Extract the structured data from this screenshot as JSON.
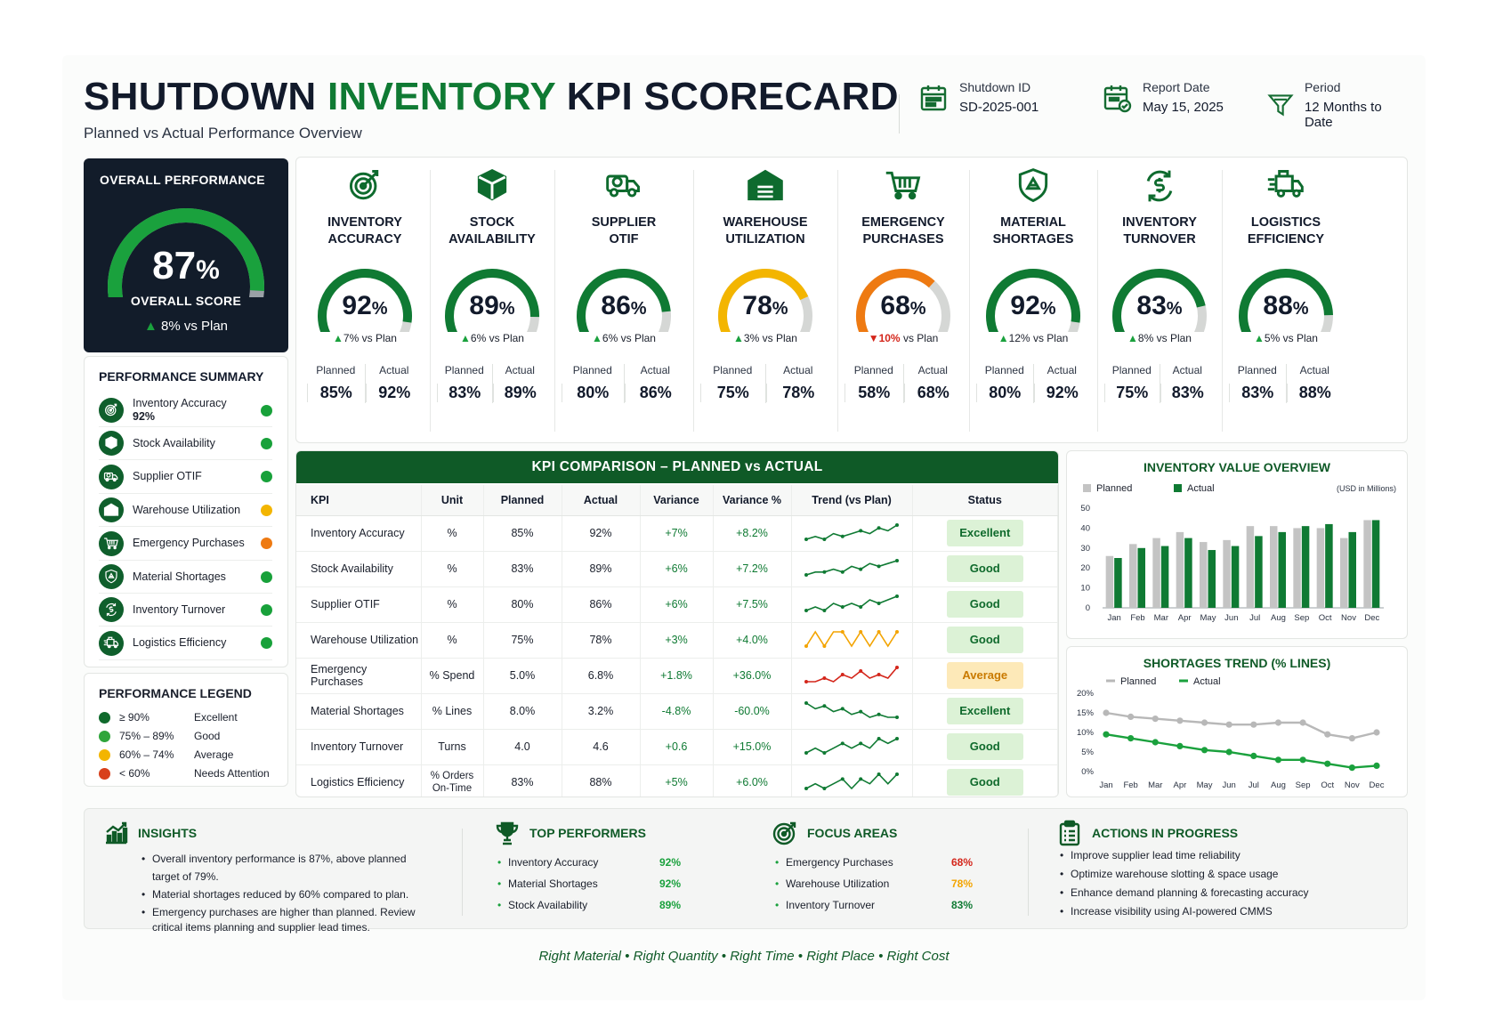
{
  "header": {
    "title_part1": "SHUTDOWN",
    "title_part2": "INVENTORY",
    "title_part3": "KPI SCORECARD",
    "subtitle": "Planned vs Actual Performance Overview",
    "meta": [
      {
        "label": "Shutdown ID",
        "value": "SD-2025-001",
        "icon": "calendar-icon"
      },
      {
        "label": "Report Date",
        "value": "May 15, 2025",
        "icon": "calendar-check-icon"
      },
      {
        "label": "Period",
        "value": "12 Months to Date",
        "icon": "filter-icon"
      }
    ]
  },
  "overall": {
    "title": "OVERALL PERFORMANCE",
    "value": "87",
    "unit": "%",
    "score_label": "OVERALL SCORE",
    "vs_plan": "8% vs Plan",
    "gauge_fraction": 0.87
  },
  "summary": {
    "title": "PERFORMANCE SUMMARY",
    "items": [
      {
        "name": "Inventory Accuracy",
        "value": "92%",
        "status": "green",
        "icon": "target-icon"
      },
      {
        "name": "Stock Availability",
        "value": "",
        "status": "green",
        "icon": "box-icon"
      },
      {
        "name": "Supplier OTIF",
        "value": "",
        "status": "green",
        "icon": "truck-icon"
      },
      {
        "name": "Warehouse Utilization",
        "value": "",
        "status": "yellow",
        "icon": "warehouse-icon"
      },
      {
        "name": "Emergency Purchases",
        "value": "",
        "status": "orange",
        "icon": "cart-icon"
      },
      {
        "name": "Material Shortages",
        "value": "",
        "status": "green",
        "icon": "shield-icon"
      },
      {
        "name": "Inventory Turnover",
        "value": "",
        "status": "green",
        "icon": "cycle-icon"
      },
      {
        "name": "Logistics Efficiency",
        "value": "",
        "status": "green",
        "icon": "delivery-icon"
      }
    ]
  },
  "legend": {
    "title": "PERFORMANCE LEGEND",
    "items": [
      {
        "range": "≥ 90%",
        "label": "Excellent",
        "color": "#0f6a2c"
      },
      {
        "range": "75% – 89%",
        "label": "Good",
        "color": "#2fa53b"
      },
      {
        "range": "60% – 74%",
        "label": "Average",
        "color": "#f3b500"
      },
      {
        "range": "< 60%",
        "label": "Needs Attention",
        "color": "#d8401b"
      }
    ]
  },
  "colors": {
    "brand_dark": "#0f5a27",
    "green": "#0f7a33",
    "light_green": "#2fa53b",
    "yellow": "#f3b500",
    "orange": "#ee7a12",
    "red": "#d4261b",
    "navy": "#121c2a"
  },
  "kpis": [
    {
      "name1": "INVENTORY",
      "name2": "ACCURACY",
      "value": "92",
      "change": "7%",
      "dir": "up",
      "planned": "85%",
      "actual": "92%",
      "gauge": 0.92,
      "color": "#0f7a33",
      "icon": "target-icon"
    },
    {
      "name1": "STOCK",
      "name2": "AVAILABILITY",
      "value": "89",
      "change": "6%",
      "dir": "up",
      "planned": "83%",
      "actual": "89%",
      "gauge": 0.89,
      "color": "#0f7a33",
      "icon": "box-icon"
    },
    {
      "name1": "SUPPLIER",
      "name2": "OTIF",
      "value": "86",
      "change": "6%",
      "dir": "up",
      "planned": "80%",
      "actual": "86%",
      "gauge": 0.86,
      "color": "#0f7a33",
      "icon": "truck-icon"
    },
    {
      "name1": "WAREHOUSE",
      "name2": "UTILIZATION",
      "value": "78",
      "change": "3%",
      "dir": "up",
      "planned": "75%",
      "actual": "78%",
      "gauge": 0.78,
      "color": "#f3b500",
      "icon": "warehouse-icon"
    },
    {
      "name1": "EMERGENCY",
      "name2": "PURCHASES",
      "value": "68",
      "change": "10%",
      "dir": "down",
      "planned": "58%",
      "actual": "68%",
      "gauge": 0.68,
      "color": "#ee7a12",
      "icon": "cart-icon"
    },
    {
      "name1": "MATERIAL",
      "name2": "SHORTAGES",
      "value": "92",
      "change": "12%",
      "dir": "up",
      "planned": "80%",
      "actual": "92%",
      "gauge": 0.92,
      "color": "#0f7a33",
      "icon": "shield-icon"
    },
    {
      "name1": "INVENTORY",
      "name2": "TURNOVER",
      "value": "83",
      "change": "8%",
      "dir": "up",
      "planned": "75%",
      "actual": "83%",
      "gauge": 0.83,
      "color": "#0f7a33",
      "icon": "cycle-icon"
    },
    {
      "name1": "LOGISTICS",
      "name2": "EFFICIENCY",
      "value": "88",
      "change": "5%",
      "dir": "up",
      "planned": "83%",
      "actual": "88%",
      "gauge": 0.88,
      "color": "#0f7a33",
      "icon": "delivery-icon"
    }
  ],
  "kpi_labels": {
    "pct": "%",
    "vs_plan": "vs Plan",
    "planned": "Planned",
    "actual": "Actual"
  },
  "comparison": {
    "title": "KPI COMPARISON – PLANNED vs ACTUAL",
    "headers": [
      "KPI",
      "Unit",
      "Planned",
      "Actual",
      "Variance",
      "Variance %",
      "Trend (vs Plan)",
      "Status"
    ],
    "rows": [
      {
        "kpi": "Inventory Accuracy",
        "unit": "%",
        "planned": "85%",
        "actual": "92%",
        "variance": "+7%",
        "variance_pct": "+8.2%",
        "status": "Excellent",
        "badge": "ex",
        "trend_color": "#0f7a33",
        "trend": [
          3,
          4,
          3,
          5,
          4,
          5,
          6,
          5,
          7,
          6,
          8
        ]
      },
      {
        "kpi": "Stock Availability",
        "unit": "%",
        "planned": "83%",
        "actual": "89%",
        "variance": "+6%",
        "variance_pct": "+7.2%",
        "status": "Good",
        "badge": "gd",
        "trend_color": "#0f7a33",
        "trend": [
          2,
          3,
          3,
          4,
          3,
          5,
          4,
          6,
          5,
          6,
          7
        ]
      },
      {
        "kpi": "Supplier OTIF",
        "unit": "%",
        "planned": "80%",
        "actual": "86%",
        "variance": "+6%",
        "variance_pct": "+7.5%",
        "status": "Good",
        "badge": "gd",
        "trend_color": "#0f7a33",
        "trend": [
          2,
          3,
          2,
          4,
          3,
          4,
          3,
          5,
          4,
          5,
          6
        ]
      },
      {
        "kpi": "Warehouse Utilization",
        "unit": "%",
        "planned": "75%",
        "actual": "78%",
        "variance": "+3%",
        "variance_pct": "+4.0%",
        "status": "Good",
        "badge": "gd",
        "trend_color": "#f3a400",
        "trend": [
          4,
          5,
          4,
          5,
          5,
          4,
          5,
          4,
          5,
          4,
          5
        ]
      },
      {
        "kpi": "Emergency Purchases",
        "unit": "% Spend",
        "planned": "5.0%",
        "actual": "6.8%",
        "variance": "+1.8%",
        "variance_pct": "+36.0%",
        "status": "Average",
        "badge": "av",
        "trend_color": "#d4261b",
        "trend": [
          3,
          3,
          4,
          3,
          5,
          4,
          6,
          4,
          5,
          4,
          7
        ]
      },
      {
        "kpi": "Material Shortages",
        "unit": "% Lines",
        "planned": "8.0%",
        "actual": "3.2%",
        "variance": "-4.8%",
        "variance_pct": "-60.0%",
        "status": "Excellent",
        "badge": "ex",
        "trend_color": "#0f7a33",
        "trend": [
          8,
          6,
          7,
          5,
          6,
          4,
          5,
          3,
          4,
          3,
          3
        ]
      },
      {
        "kpi": "Inventory Turnover",
        "unit": "Turns",
        "planned": "4.0",
        "actual": "4.6",
        "variance": "+0.6",
        "variance_pct": "+15.0%",
        "status": "Good",
        "badge": "gd",
        "trend_color": "#0f7a33",
        "trend": [
          3,
          4,
          3,
          4,
          5,
          4,
          5,
          4,
          6,
          5,
          6
        ]
      },
      {
        "kpi": "Logistics Efficiency",
        "unit": "% Orders On-Time",
        "planned": "83%",
        "actual": "88%",
        "variance": "+5%",
        "variance_pct": "+6.0%",
        "status": "Good",
        "badge": "gd",
        "trend_color": "#0f7a33",
        "trend": [
          3,
          4,
          3,
          4,
          5,
          3,
          5,
          4,
          6,
          4,
          6
        ]
      }
    ]
  },
  "chart_data": [
    {
      "type": "bar",
      "title": "INVENTORY VALUE OVERVIEW",
      "unit_note": "(USD in Millions)",
      "categories": [
        "Jan",
        "Feb",
        "Mar",
        "Apr",
        "May",
        "Jun",
        "Jul",
        "Aug",
        "Sep",
        "Oct",
        "Nov",
        "Dec"
      ],
      "series": [
        {
          "name": "Planned",
          "color": "#c4c4c4",
          "values": [
            26,
            32,
            35,
            38,
            33,
            34,
            41,
            41,
            40,
            40,
            35,
            44
          ]
        },
        {
          "name": "Actual",
          "color": "#0f7a33",
          "values": [
            25,
            30,
            31,
            35,
            29,
            31,
            36,
            38,
            41,
            42,
            38,
            44
          ]
        }
      ],
      "ylim": [
        0,
        50
      ],
      "yticks": [
        "0",
        "10",
        "20",
        "30",
        "40",
        "50"
      ],
      "legend": "top-left"
    },
    {
      "type": "line",
      "title": "SHORTAGES TREND (% LINES)",
      "categories": [
        "Jan",
        "Feb",
        "Mar",
        "Apr",
        "May",
        "Jun",
        "Jul",
        "Aug",
        "Sep",
        "Oct",
        "Nov",
        "Dec"
      ],
      "series": [
        {
          "name": "Planned",
          "color": "#b8b8b8",
          "values": [
            15,
            14,
            13.5,
            13,
            12.5,
            12,
            12,
            12.5,
            12.5,
            9.5,
            8.5,
            10
          ]
        },
        {
          "name": "Actual",
          "color": "#1aa13d",
          "values": [
            9.5,
            8.5,
            7.5,
            6.5,
            5.5,
            5,
            4,
            3,
            3,
            2,
            1,
            1.5
          ]
        }
      ],
      "ylim": [
        0,
        20
      ],
      "yticks": [
        "0%",
        "5%",
        "10%",
        "15%",
        "20%"
      ],
      "legend": "top-left"
    }
  ],
  "insights": {
    "title": "INSIGHTS",
    "items": [
      "Overall inventory performance is 87%, above planned target of 79%.",
      "Material shortages reduced by 60% compared to plan.",
      "Emergency purchases are higher than planned. Review critical items planning and supplier lead times."
    ]
  },
  "top_performers": {
    "title": "TOP PERFORMERS",
    "items": [
      {
        "name": "Inventory Accuracy",
        "value": "92%"
      },
      {
        "name": "Material Shortages",
        "value": "92%"
      },
      {
        "name": "Stock Availability",
        "value": "89%"
      }
    ]
  },
  "focus_areas": {
    "title": "FOCUS AREAS",
    "items": [
      {
        "name": "Emergency Purchases",
        "value": "68%",
        "color": "#d4261b"
      },
      {
        "name": "Warehouse Utilization",
        "value": "78%",
        "color": "#f3a400"
      },
      {
        "name": "Inventory Turnover",
        "value": "83%",
        "color": "#0f7a33"
      }
    ]
  },
  "actions": {
    "title": "ACTIONS IN PROGRESS",
    "items": [
      "Improve supplier lead time reliability",
      "Optimize warehouse slotting & space usage",
      "Enhance demand planning & forecasting accuracy",
      "Increase visibility using AI-powered CMMS"
    ]
  },
  "footer": "Right Material  •  Right Quantity  •  Right Time  •  Right Place  •  Right Cost"
}
